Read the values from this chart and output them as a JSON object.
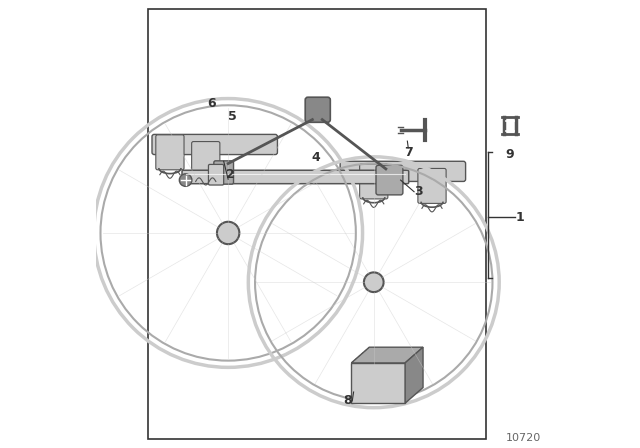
{
  "background_color": "#ffffff",
  "page_number": "10720",
  "line_color": "#333333",
  "light_gray": "#aaaaaa",
  "mid_gray": "#888888",
  "dark_gray": "#555555",
  "very_light_gray": "#cccccc"
}
